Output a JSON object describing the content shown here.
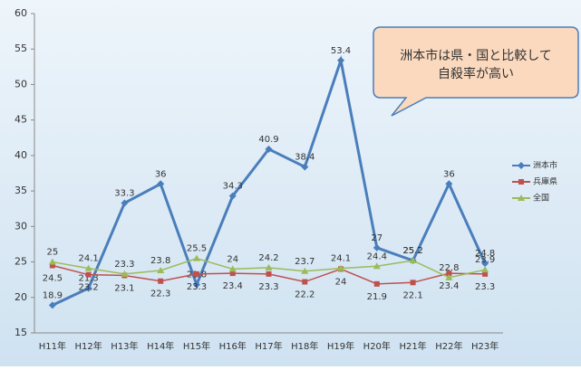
{
  "chart_data": {
    "type": "line",
    "annotation": [
      "洲本市は県・国と比較して",
      "自殺率が高い"
    ],
    "categories": [
      "H11年",
      "H12年",
      "H13年",
      "H14年",
      "H15年",
      "H16年",
      "H17年",
      "H18年",
      "H19年",
      "H20年",
      "H21年",
      "H22年",
      "H23年"
    ],
    "series": [
      {
        "name": "洲本市",
        "color": "#4a7ebb",
        "marker": "diamond",
        "values": [
          18.9,
          21.3,
          33.3,
          36,
          21.8,
          34.3,
          40.9,
          38.4,
          53.4,
          27,
          25.2,
          36,
          24.8
        ]
      },
      {
        "name": "兵庫県",
        "color": "#c0504d",
        "marker": "square",
        "values": [
          24.5,
          23.2,
          23.1,
          22.3,
          23.3,
          23.4,
          23.3,
          22.2,
          24,
          21.9,
          22.1,
          23.4,
          23.3
        ]
      },
      {
        "name": "全国",
        "color": "#9bbb59",
        "marker": "triangle",
        "values": [
          25,
          24.1,
          23.3,
          23.8,
          25.5,
          24,
          24.2,
          23.7,
          24.1,
          24.4,
          25.2,
          22.8,
          23.9
        ]
      }
    ],
    "ylim": [
      15,
      60
    ],
    "yticks": [
      15,
      20,
      25,
      30,
      35,
      40,
      45,
      50,
      55,
      60
    ],
    "legend": "right"
  }
}
